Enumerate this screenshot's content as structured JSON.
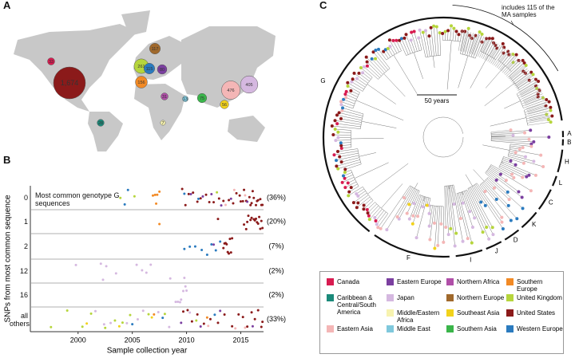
{
  "legend": {
    "items": [
      {
        "name": "Canada",
        "color": "#d81b50"
      },
      {
        "name": "Eastern Europe",
        "color": "#7b3fa0"
      },
      {
        "name": "Northern Africa",
        "color": "#b04fa8"
      },
      {
        "name": "Southern Europe",
        "color": "#f28a25"
      },
      {
        "name": "Caribbean & Central/South America",
        "color": "#1b8a7a"
      },
      {
        "name": "Japan",
        "color": "#d5b8e0"
      },
      {
        "name": "Northern Europe",
        "color": "#a0692c"
      },
      {
        "name": "United Kingdom",
        "color": "#b6d53c"
      },
      {
        "name": "Middle/Eastern Africa",
        "color": "#f7f3b0"
      },
      {
        "name": "Southeast Asia",
        "color": "#f2d21b"
      },
      {
        "name": "United States",
        "color": "#8b1a1a"
      },
      {
        "name": "Eastern Asia",
        "color": "#f4b6b6"
      },
      {
        "name": "Middle East",
        "color": "#7fc8dc"
      },
      {
        "name": "Southern Asia",
        "color": "#3ab54a"
      },
      {
        "name": "Western Europe",
        "color": "#2b7bbf"
      }
    ]
  },
  "chart_data": [
    {
      "type": "bubble-map",
      "label": "A",
      "values": [
        33,
        80,
        31,
        156,
        28,
        405,
        117,
        261,
        7,
        56,
        1674,
        476,
        13,
        75,
        115
      ],
      "value_labels": [
        "33",
        "80",
        "31",
        "156",
        "28",
        "405",
        "117",
        "261",
        "7",
        "56",
        "1,674",
        "476",
        "13",
        "75",
        "115"
      ]
    },
    {
      "type": "strip",
      "label": "B",
      "xlabel": "Sample collection year",
      "ylabel": "SNPs from most common sequence",
      "xlim": [
        1995.6,
        2017.1
      ],
      "xticks": [
        2000,
        2005,
        2010,
        2015
      ],
      "categories": [
        "0",
        "1",
        "2",
        "12",
        "16",
        "all others"
      ],
      "shares": [
        "(36%)",
        "(20%)",
        "(7%)",
        "(2%)",
        "(2%)",
        "(33%)"
      ],
      "annotation": "Most common genotype G sequences",
      "rows": [
        {
          "groups": [
            {
              "color": "#8b1a1a",
              "x": [
                2009.6,
                2009.9,
                2010.2,
                2010.6,
                2011.0,
                2011.3,
                2011.8,
                2012.1,
                2012.5,
                2013.0,
                2013.4,
                2013.9,
                2014.3,
                2014.6,
                2014.9,
                2015.0,
                2015.2,
                2015.3,
                2015.5,
                2015.8,
                2015.9,
                2016.0,
                2016.1,
                2016.2,
                2016.4,
                2016.5,
                2016.6,
                2016.8,
                2016.9,
                2017.0
              ]
            },
            {
              "color": "#f28a25",
              "x": [
                2006.9,
                2007.1,
                2007.2,
                2007.3,
                2007.5
              ]
            },
            {
              "color": "#7b3fa0",
              "x": [
                2010.4,
                2011.5,
                2012.3,
                2013.2,
                2014.1,
                2015.6
              ]
            },
            {
              "color": "#2b7bbf",
              "x": [
                2004.3,
                2004.6,
                2009.8,
                2011.1
              ]
            },
            {
              "color": "#b6d53c",
              "x": [
                2003.9,
                2005.2,
                2012.8
              ]
            },
            {
              "color": "#f4b6b6",
              "x": [
                2013.6,
                2014.4,
                2015.4
              ]
            }
          ]
        },
        {
          "groups": [
            {
              "color": "#8b1a1a",
              "x": [
                2012.9,
                2015.3,
                2015.5,
                2015.6,
                2015.7,
                2015.9,
                2016.0,
                2016.2,
                2016.3,
                2016.4,
                2016.5,
                2016.6,
                2016.7,
                2016.8,
                2016.9,
                2017.0
              ]
            },
            {
              "color": "#f28a25",
              "x": [
                2007.5
              ]
            }
          ]
        },
        {
          "groups": [
            {
              "color": "#2b7bbf",
              "x": [
                2009.8,
                2010.3,
                2010.8,
                2011.4,
                2011.9,
                2012.3,
                2012.7,
                2013.1
              ]
            },
            {
              "color": "#8b1a1a",
              "x": [
                2013.4,
                2013.5,
                2013.6,
                2013.7,
                2013.8,
                2013.9,
                2014.0,
                2014.1,
                2014.2
              ]
            },
            {
              "color": "#7b3fa0",
              "x": [
                2012.5
              ]
            }
          ]
        },
        {
          "groups": [
            {
              "color": "#d5b8e0",
              "x": [
                1999.8,
                2002.1,
                2002.3,
                2002.6,
                2003.5,
                2005.4,
                2005.9,
                2006.3,
                2006.7,
                2008.5,
                2009.8
              ]
            }
          ]
        },
        {
          "groups": [
            {
              "color": "#d5b8e0",
              "x": [
                2009.0,
                2009.2,
                2009.4,
                2009.5,
                2009.7,
                2009.9,
                2010.0
              ]
            }
          ]
        },
        {
          "groups": [
            {
              "color": "#8b1a1a",
              "x": [
                2009.7,
                2010.1,
                2010.5,
                2011.0,
                2011.6,
                2012.2,
                2012.9,
                2013.5,
                2014.2,
                2014.8,
                2015.2,
                2015.6,
                2016.0,
                2016.3,
                2016.6,
                2016.9,
                2017.0
              ]
            },
            {
              "color": "#b6d53c",
              "x": [
                1997.5,
                1999.0,
                2000.4,
                2001.2,
                2002.5,
                2003.4,
                2004.1,
                2004.8,
                2006.5,
                2008.0,
                2010.9
              ]
            },
            {
              "color": "#d5b8e0",
              "x": [
                2001.6,
                2002.4,
                2003.0,
                2004.5,
                2005.5,
                2006.0,
                2007.4,
                2008.4,
                2010.3
              ]
            },
            {
              "color": "#7b3fa0",
              "x": [
                2009.5,
                2011.3,
                2013.1,
                2016.1
              ]
            },
            {
              "color": "#f4b6b6",
              "x": [
                2012.0,
                2014.5,
                2015.4
              ]
            },
            {
              "color": "#2b7bbf",
              "x": [
                2005.0,
                2007.8,
                2012.6
              ]
            },
            {
              "color": "#f2d21b",
              "x": [
                2000.8,
                2003.8,
                2006.8
              ]
            },
            {
              "color": "#f28a25",
              "x": [
                2007.0,
                2011.9
              ]
            }
          ]
        }
      ]
    },
    {
      "type": "tree",
      "label": "C",
      "scale_label": "50 years",
      "note": "includes 115 of the MA samples",
      "clades": [
        "G",
        "A",
        "B",
        "H",
        "L",
        "C",
        "K",
        "D",
        "J",
        "I",
        "F"
      ]
    }
  ]
}
